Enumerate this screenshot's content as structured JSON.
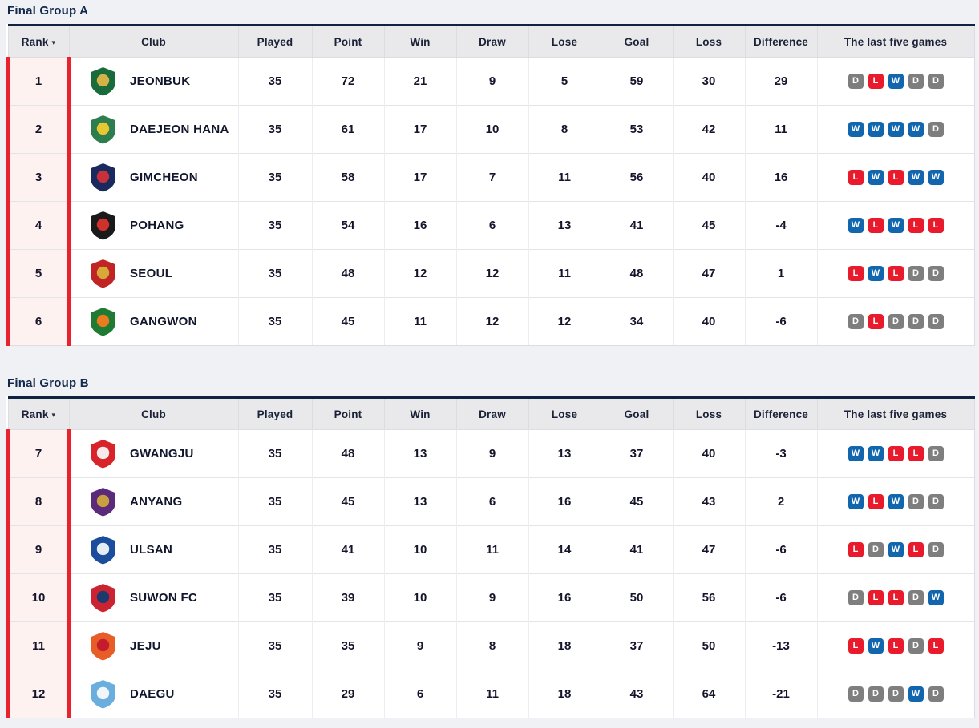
{
  "theme": {
    "page_bg": "#eff1f5",
    "navy": "#0f2440",
    "accent_red": "#e8232e",
    "header_bg": "#e9e9ec",
    "rank_bg": "#fdf2ef"
  },
  "result_colors": {
    "W": "#1266ad",
    "L": "#e81a2b",
    "D": "#7e7e7e"
  },
  "columns": [
    {
      "key": "rank",
      "label": "Rank",
      "sortable": true
    },
    {
      "key": "club",
      "label": "Club",
      "sortable": false
    },
    {
      "key": "played",
      "label": "Played",
      "sortable": false
    },
    {
      "key": "point",
      "label": "Point",
      "sortable": false
    },
    {
      "key": "win",
      "label": "Win",
      "sortable": false
    },
    {
      "key": "draw",
      "label": "Draw",
      "sortable": false
    },
    {
      "key": "lose",
      "label": "Lose",
      "sortable": false
    },
    {
      "key": "goal",
      "label": "Goal",
      "sortable": false
    },
    {
      "key": "loss",
      "label": "Loss",
      "sortable": false
    },
    {
      "key": "difference",
      "label": "Difference",
      "sortable": false
    },
    {
      "key": "last5",
      "label": "The last five games",
      "sortable": false
    }
  ],
  "groups": [
    {
      "title": "Final Group A",
      "rows": [
        {
          "rank": 1,
          "club": "JEONBUK",
          "logo": {
            "name": "jeonbuk-club-logo",
            "primary": "#1a6b3c",
            "secondary": "#d4b24a"
          },
          "played": 35,
          "point": 72,
          "win": 21,
          "draw": 9,
          "lose": 5,
          "goal": 59,
          "loss": 30,
          "difference": 29,
          "last_five": [
            "D",
            "L",
            "W",
            "D",
            "D"
          ]
        },
        {
          "rank": 2,
          "club": "DAEJEON HANA",
          "logo": {
            "name": "daejeon-hana-club-logo",
            "primary": "#2e7d4f",
            "secondary": "#e8c832"
          },
          "played": 35,
          "point": 61,
          "win": 17,
          "draw": 10,
          "lose": 8,
          "goal": 53,
          "loss": 42,
          "difference": 11,
          "last_five": [
            "W",
            "W",
            "W",
            "W",
            "D"
          ]
        },
        {
          "rank": 3,
          "club": "GIMCHEON",
          "logo": {
            "name": "gimcheon-club-logo",
            "primary": "#1b2a5e",
            "secondary": "#c8303c"
          },
          "played": 35,
          "point": 58,
          "win": 17,
          "draw": 7,
          "lose": 11,
          "goal": 56,
          "loss": 40,
          "difference": 16,
          "last_five": [
            "L",
            "W",
            "L",
            "W",
            "W"
          ]
        },
        {
          "rank": 4,
          "club": "POHANG",
          "logo": {
            "name": "pohang-club-logo",
            "primary": "#1a1a1a",
            "secondary": "#d0312d"
          },
          "played": 35,
          "point": 54,
          "win": 16,
          "draw": 6,
          "lose": 13,
          "goal": 41,
          "loss": 45,
          "difference": -4,
          "last_five": [
            "W",
            "L",
            "W",
            "L",
            "L"
          ]
        },
        {
          "rank": 5,
          "club": "SEOUL",
          "logo": {
            "name": "seoul-club-logo",
            "primary": "#c02424",
            "secondary": "#d8a838"
          },
          "played": 35,
          "point": 48,
          "win": 12,
          "draw": 12,
          "lose": 11,
          "goal": 48,
          "loss": 47,
          "difference": 1,
          "last_five": [
            "L",
            "W",
            "L",
            "D",
            "D"
          ]
        },
        {
          "rank": 6,
          "club": "GANGWON",
          "logo": {
            "name": "gangwon-club-logo",
            "primary": "#1f7a33",
            "secondary": "#e87c1e"
          },
          "played": 35,
          "point": 45,
          "win": 11,
          "draw": 12,
          "lose": 12,
          "goal": 34,
          "loss": 40,
          "difference": -6,
          "last_five": [
            "D",
            "L",
            "D",
            "D",
            "D"
          ]
        }
      ]
    },
    {
      "title": "Final Group B",
      "rows": [
        {
          "rank": 7,
          "club": "GWANGJU",
          "logo": {
            "name": "gwangju-club-logo",
            "primary": "#d8232a",
            "secondary": "#f5e9e9"
          },
          "played": 35,
          "point": 48,
          "win": 13,
          "draw": 9,
          "lose": 13,
          "goal": 37,
          "loss": 40,
          "difference": -3,
          "last_five": [
            "W",
            "W",
            "L",
            "L",
            "D"
          ]
        },
        {
          "rank": 8,
          "club": "ANYANG",
          "logo": {
            "name": "anyang-club-logo",
            "primary": "#5c2a7a",
            "secondary": "#c8a040"
          },
          "played": 35,
          "point": 45,
          "win": 13,
          "draw": 6,
          "lose": 16,
          "goal": 45,
          "loss": 43,
          "difference": 2,
          "last_five": [
            "W",
            "L",
            "W",
            "D",
            "D"
          ]
        },
        {
          "rank": 9,
          "club": "ULSAN",
          "logo": {
            "name": "ulsan-club-logo",
            "primary": "#1c4c9c",
            "secondary": "#e6ecf6"
          },
          "played": 35,
          "point": 41,
          "win": 10,
          "draw": 11,
          "lose": 14,
          "goal": 41,
          "loss": 47,
          "difference": -6,
          "last_five": [
            "L",
            "D",
            "W",
            "L",
            "D"
          ]
        },
        {
          "rank": 10,
          "club": "SUWON FC",
          "logo": {
            "name": "suwon-fc-club-logo",
            "primary": "#cc2332",
            "secondary": "#1c3a6e"
          },
          "played": 35,
          "point": 39,
          "win": 10,
          "draw": 9,
          "lose": 16,
          "goal": 50,
          "loss": 56,
          "difference": -6,
          "last_five": [
            "D",
            "L",
            "L",
            "D",
            "W"
          ]
        },
        {
          "rank": 11,
          "club": "JEJU",
          "logo": {
            "name": "jeju-club-logo",
            "primary": "#e85c28",
            "secondary": "#c41c2c"
          },
          "played": 35,
          "point": 35,
          "win": 9,
          "draw": 8,
          "lose": 18,
          "goal": 37,
          "loss": 50,
          "difference": -13,
          "last_five": [
            "L",
            "W",
            "L",
            "D",
            "L"
          ]
        },
        {
          "rank": 12,
          "club": "DAEGU",
          "logo": {
            "name": "daegu-club-logo",
            "primary": "#6aaede",
            "secondary": "#f0f6fc"
          },
          "played": 35,
          "point": 29,
          "win": 6,
          "draw": 11,
          "lose": 18,
          "goal": 43,
          "loss": 64,
          "difference": -21,
          "last_five": [
            "D",
            "D",
            "D",
            "W",
            "D"
          ]
        }
      ]
    }
  ]
}
